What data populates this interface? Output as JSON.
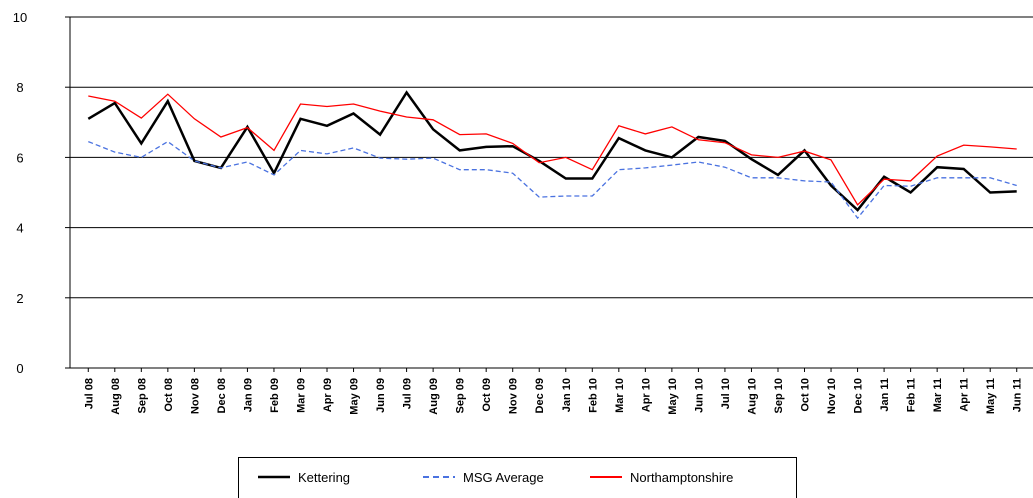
{
  "chart_data": {
    "type": "line",
    "categories": [
      "Jul 08",
      "Aug 08",
      "Sep 08",
      "Oct 08",
      "Nov 08",
      "Dec 08",
      "Jan 09",
      "Feb 09",
      "Mar 09",
      "Apr 09",
      "May 09",
      "Jun 09",
      "Jul 09",
      "Aug 09",
      "Sep 09",
      "Oct 09",
      "Nov 09",
      "Dec 09",
      "Jan 10",
      "Feb 10",
      "Mar 10",
      "Apr 10",
      "May 10",
      "Jun 10",
      "Jul 10",
      "Aug 10",
      "Sep 10",
      "Oct 10",
      "Nov 10",
      "Dec 10",
      "Jan 11",
      "Feb 11",
      "Mar 11",
      "Apr 11",
      "May 11",
      "Jun 11"
    ],
    "series": [
      {
        "name": "Kettering",
        "color": "#000000",
        "style": "solid",
        "values": [
          7.1,
          7.55,
          6.4,
          7.6,
          5.9,
          5.7,
          6.87,
          5.55,
          7.1,
          6.9,
          7.25,
          6.65,
          7.85,
          6.8,
          6.2,
          6.3,
          6.32,
          5.9,
          5.4,
          5.4,
          6.55,
          6.2,
          6.0,
          6.58,
          6.47,
          5.95,
          5.5,
          6.2,
          5.2,
          4.5,
          5.45,
          5.0,
          5.72,
          5.67,
          5.0,
          5.03
        ]
      },
      {
        "name": "MSG Average",
        "color": "#4a72e0",
        "style": "dashed",
        "values": [
          6.45,
          6.15,
          6.0,
          6.45,
          5.9,
          5.7,
          5.87,
          5.5,
          6.2,
          6.1,
          6.27,
          5.98,
          5.95,
          5.98,
          5.65,
          5.65,
          5.55,
          4.87,
          4.9,
          4.9,
          5.65,
          5.7,
          5.78,
          5.87,
          5.72,
          5.42,
          5.42,
          5.33,
          5.3,
          4.27,
          5.2,
          5.18,
          5.42,
          5.42,
          5.42,
          5.2
        ]
      },
      {
        "name": "Northamptonshire",
        "color": "#ff0000",
        "style": "solid",
        "values": [
          7.75,
          7.6,
          7.12,
          7.8,
          7.1,
          6.58,
          6.85,
          6.2,
          7.52,
          7.45,
          7.52,
          7.32,
          7.15,
          7.07,
          6.65,
          6.67,
          6.4,
          5.85,
          6.0,
          5.65,
          6.9,
          6.67,
          6.87,
          6.5,
          6.42,
          6.07,
          6.0,
          6.18,
          5.93,
          4.65,
          5.38,
          5.33,
          6.04,
          6.35,
          6.3,
          6.24
        ]
      }
    ],
    "ylim": [
      0,
      10
    ],
    "yticks": [
      0,
      2,
      4,
      6,
      8,
      10
    ],
    "grid": true
  }
}
